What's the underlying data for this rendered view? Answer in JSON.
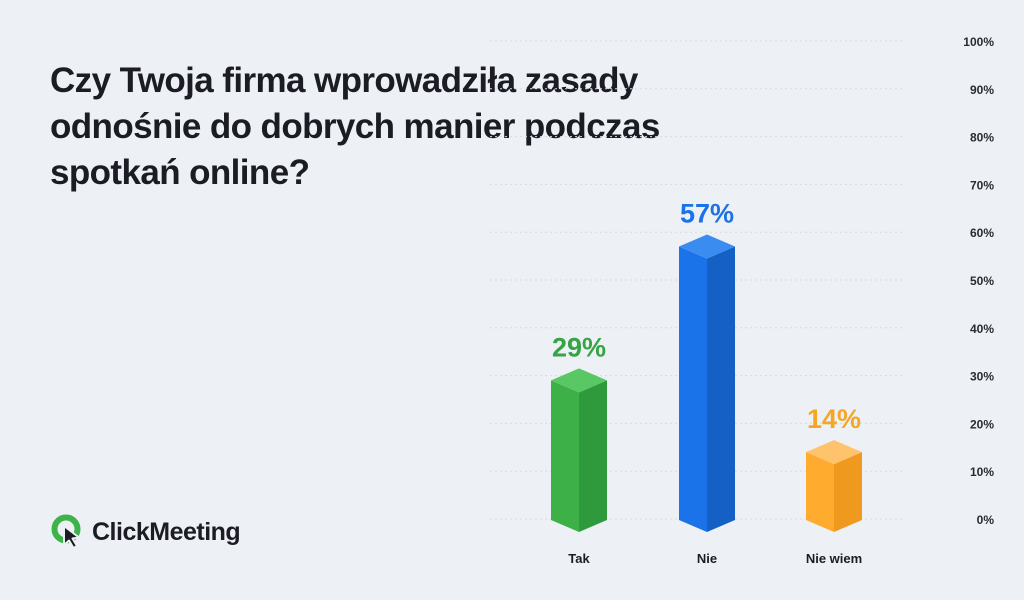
{
  "title": "Czy Twoja firma wprowadziła zasady odnośnie do dobrych manier podczas spotkań online?",
  "brand": {
    "name": "ClickMeeting",
    "logo_icon": "clickmeeting-logo-icon",
    "colors": {
      "green": "#3cb44a",
      "dark": "#1c1c24"
    }
  },
  "chart_data": {
    "type": "bar",
    "categories": [
      "Tak",
      "Nie",
      "Nie wiem"
    ],
    "values": [
      29,
      57,
      14
    ],
    "value_labels": [
      "29%",
      "57%",
      "14%"
    ],
    "ylim": [
      0,
      100
    ],
    "yticks": [
      0,
      10,
      20,
      30,
      40,
      50,
      60,
      70,
      80,
      90,
      100
    ],
    "ytick_labels": [
      "0%",
      "10%",
      "20%",
      "30%",
      "40%",
      "50%",
      "60%",
      "70%",
      "80%",
      "90%",
      "100%"
    ],
    "y_axis_position": "right",
    "grid": true,
    "bar_style": "3d",
    "colors": [
      {
        "front": "#3db148",
        "side": "#2f9a3c",
        "top": "#58c764",
        "label": "#36a444"
      },
      {
        "front": "#1a73e8",
        "side": "#1560c4",
        "top": "#3b8cf0",
        "label": "#1a73e8"
      },
      {
        "front": "#ffab2e",
        "side": "#ef9a1e",
        "top": "#ffc36b",
        "label": "#f5a623"
      }
    ],
    "title": "",
    "xlabel": "",
    "ylabel": ""
  }
}
